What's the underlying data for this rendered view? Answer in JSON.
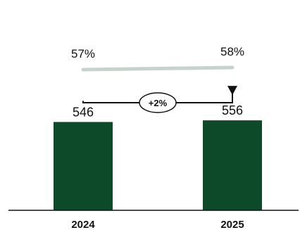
{
  "chart_data": {
    "type": "bar",
    "categories": [
      "2024",
      "2025"
    ],
    "values": [
      546,
      556
    ],
    "ylim": [
      0,
      1200
    ],
    "bar_color": "#0d4a2a",
    "grid": false,
    "share_line": {
      "values": [
        "57%",
        "58%"
      ],
      "numeric": [
        57,
        58
      ],
      "color": "#c5d3cc"
    },
    "change_annotation": {
      "text": "+2%",
      "from": "2024",
      "to": "2025"
    }
  }
}
